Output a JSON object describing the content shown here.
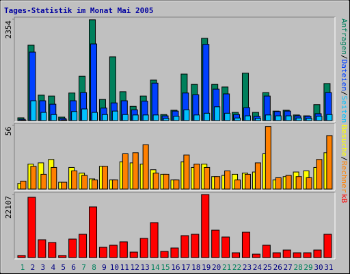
{
  "title": "Tages-Statistik im Monat Mai 2005",
  "legend_separator": "/",
  "chart_data": [
    {
      "type": "bar",
      "ylim": [
        0,
        2354
      ],
      "yticks": [
        2354
      ],
      "series": [
        {
          "name": "Anfragen",
          "color": "#00805c",
          "values": [
            64,
            1750,
            590,
            570,
            80,
            640,
            1030,
            2340,
            490,
            1480,
            670,
            330,
            570,
            940,
            140,
            240,
            1080,
            840,
            1910,
            840,
            780,
            190,
            1100,
            190,
            650,
            220,
            240,
            130,
            110,
            370,
            860
          ]
        },
        {
          "name": "Dateien",
          "color": "#0040ff",
          "values": [
            30,
            1590,
            460,
            380,
            50,
            460,
            650,
            1780,
            290,
            410,
            460,
            250,
            450,
            870,
            110,
            220,
            640,
            600,
            1770,
            730,
            620,
            140,
            300,
            100,
            570,
            210,
            220,
            110,
            100,
            160,
            650
          ]
        },
        {
          "name": "Seiten",
          "color": "#00c0ff",
          "values": [
            10,
            460,
            190,
            140,
            16,
            210,
            270,
            190,
            140,
            220,
            140,
            130,
            130,
            130,
            50,
            100,
            250,
            130,
            170,
            320,
            170,
            60,
            110,
            50,
            130,
            110,
            110,
            60,
            50,
            100,
            140
          ]
        }
      ]
    },
    {
      "type": "bar",
      "ylim": [
        0,
        56
      ],
      "yticks": [
        56
      ],
      "series": [
        {
          "name": "Besuche",
          "color": "#ffff00",
          "values": [
            5,
            22,
            23,
            26,
            6,
            19,
            14,
            9,
            20,
            8,
            24,
            23,
            22,
            17,
            13,
            8,
            24,
            19,
            22,
            11,
            12,
            13,
            14,
            15,
            31,
            8,
            11,
            15,
            16,
            19,
            32
          ]
        },
        {
          "name": "Rechner",
          "color": "#ff8000",
          "values": [
            7,
            20,
            13,
            19,
            6,
            16,
            12,
            8,
            20,
            8,
            31,
            32,
            39,
            14,
            13,
            8,
            30,
            22,
            19,
            11,
            16,
            8,
            13,
            23,
            55,
            10,
            12,
            11,
            10,
            26,
            47
          ]
        }
      ]
    },
    {
      "type": "bar",
      "ylim": [
        0,
        22107
      ],
      "yticks": [
        22107
      ],
      "categories": [
        "1",
        "2",
        "3",
        "4",
        "5",
        "6",
        "7",
        "8",
        "9",
        "10",
        "11",
        "12",
        "13",
        "14",
        "15",
        "16",
        "17",
        "18",
        "19",
        "20",
        "21",
        "22",
        "23",
        "24",
        "25",
        "26",
        "27",
        "28",
        "29",
        "30",
        "31"
      ],
      "category_colors": [
        "#00805c",
        "#000080",
        "#000080",
        "#000080",
        "#000080",
        "#000080",
        "#00805c",
        "#00805c",
        "#000080",
        "#000080",
        "#000080",
        "#000080",
        "#000080",
        "#00805c",
        "#00805c",
        "#000080",
        "#000080",
        "#000080",
        "#000080",
        "#000080",
        "#00805c",
        "#00805c",
        "#000080",
        "#000080",
        "#000080",
        "#000080",
        "#000080",
        "#00805c",
        "#00805c",
        "#000080",
        "#000080"
      ],
      "series": [
        {
          "name": "kB",
          "color": "#ff0000",
          "values": [
            720,
            21150,
            6250,
            5290,
            720,
            6490,
            8170,
            17780,
            3600,
            4330,
            5530,
            1920,
            6730,
            12260,
            2160,
            3360,
            7690,
            8170,
            22107,
            9610,
            7210,
            1680,
            8890,
            1200,
            4330,
            1680,
            2640,
            1680,
            1680,
            2640,
            8170
          ]
        }
      ]
    }
  ]
}
